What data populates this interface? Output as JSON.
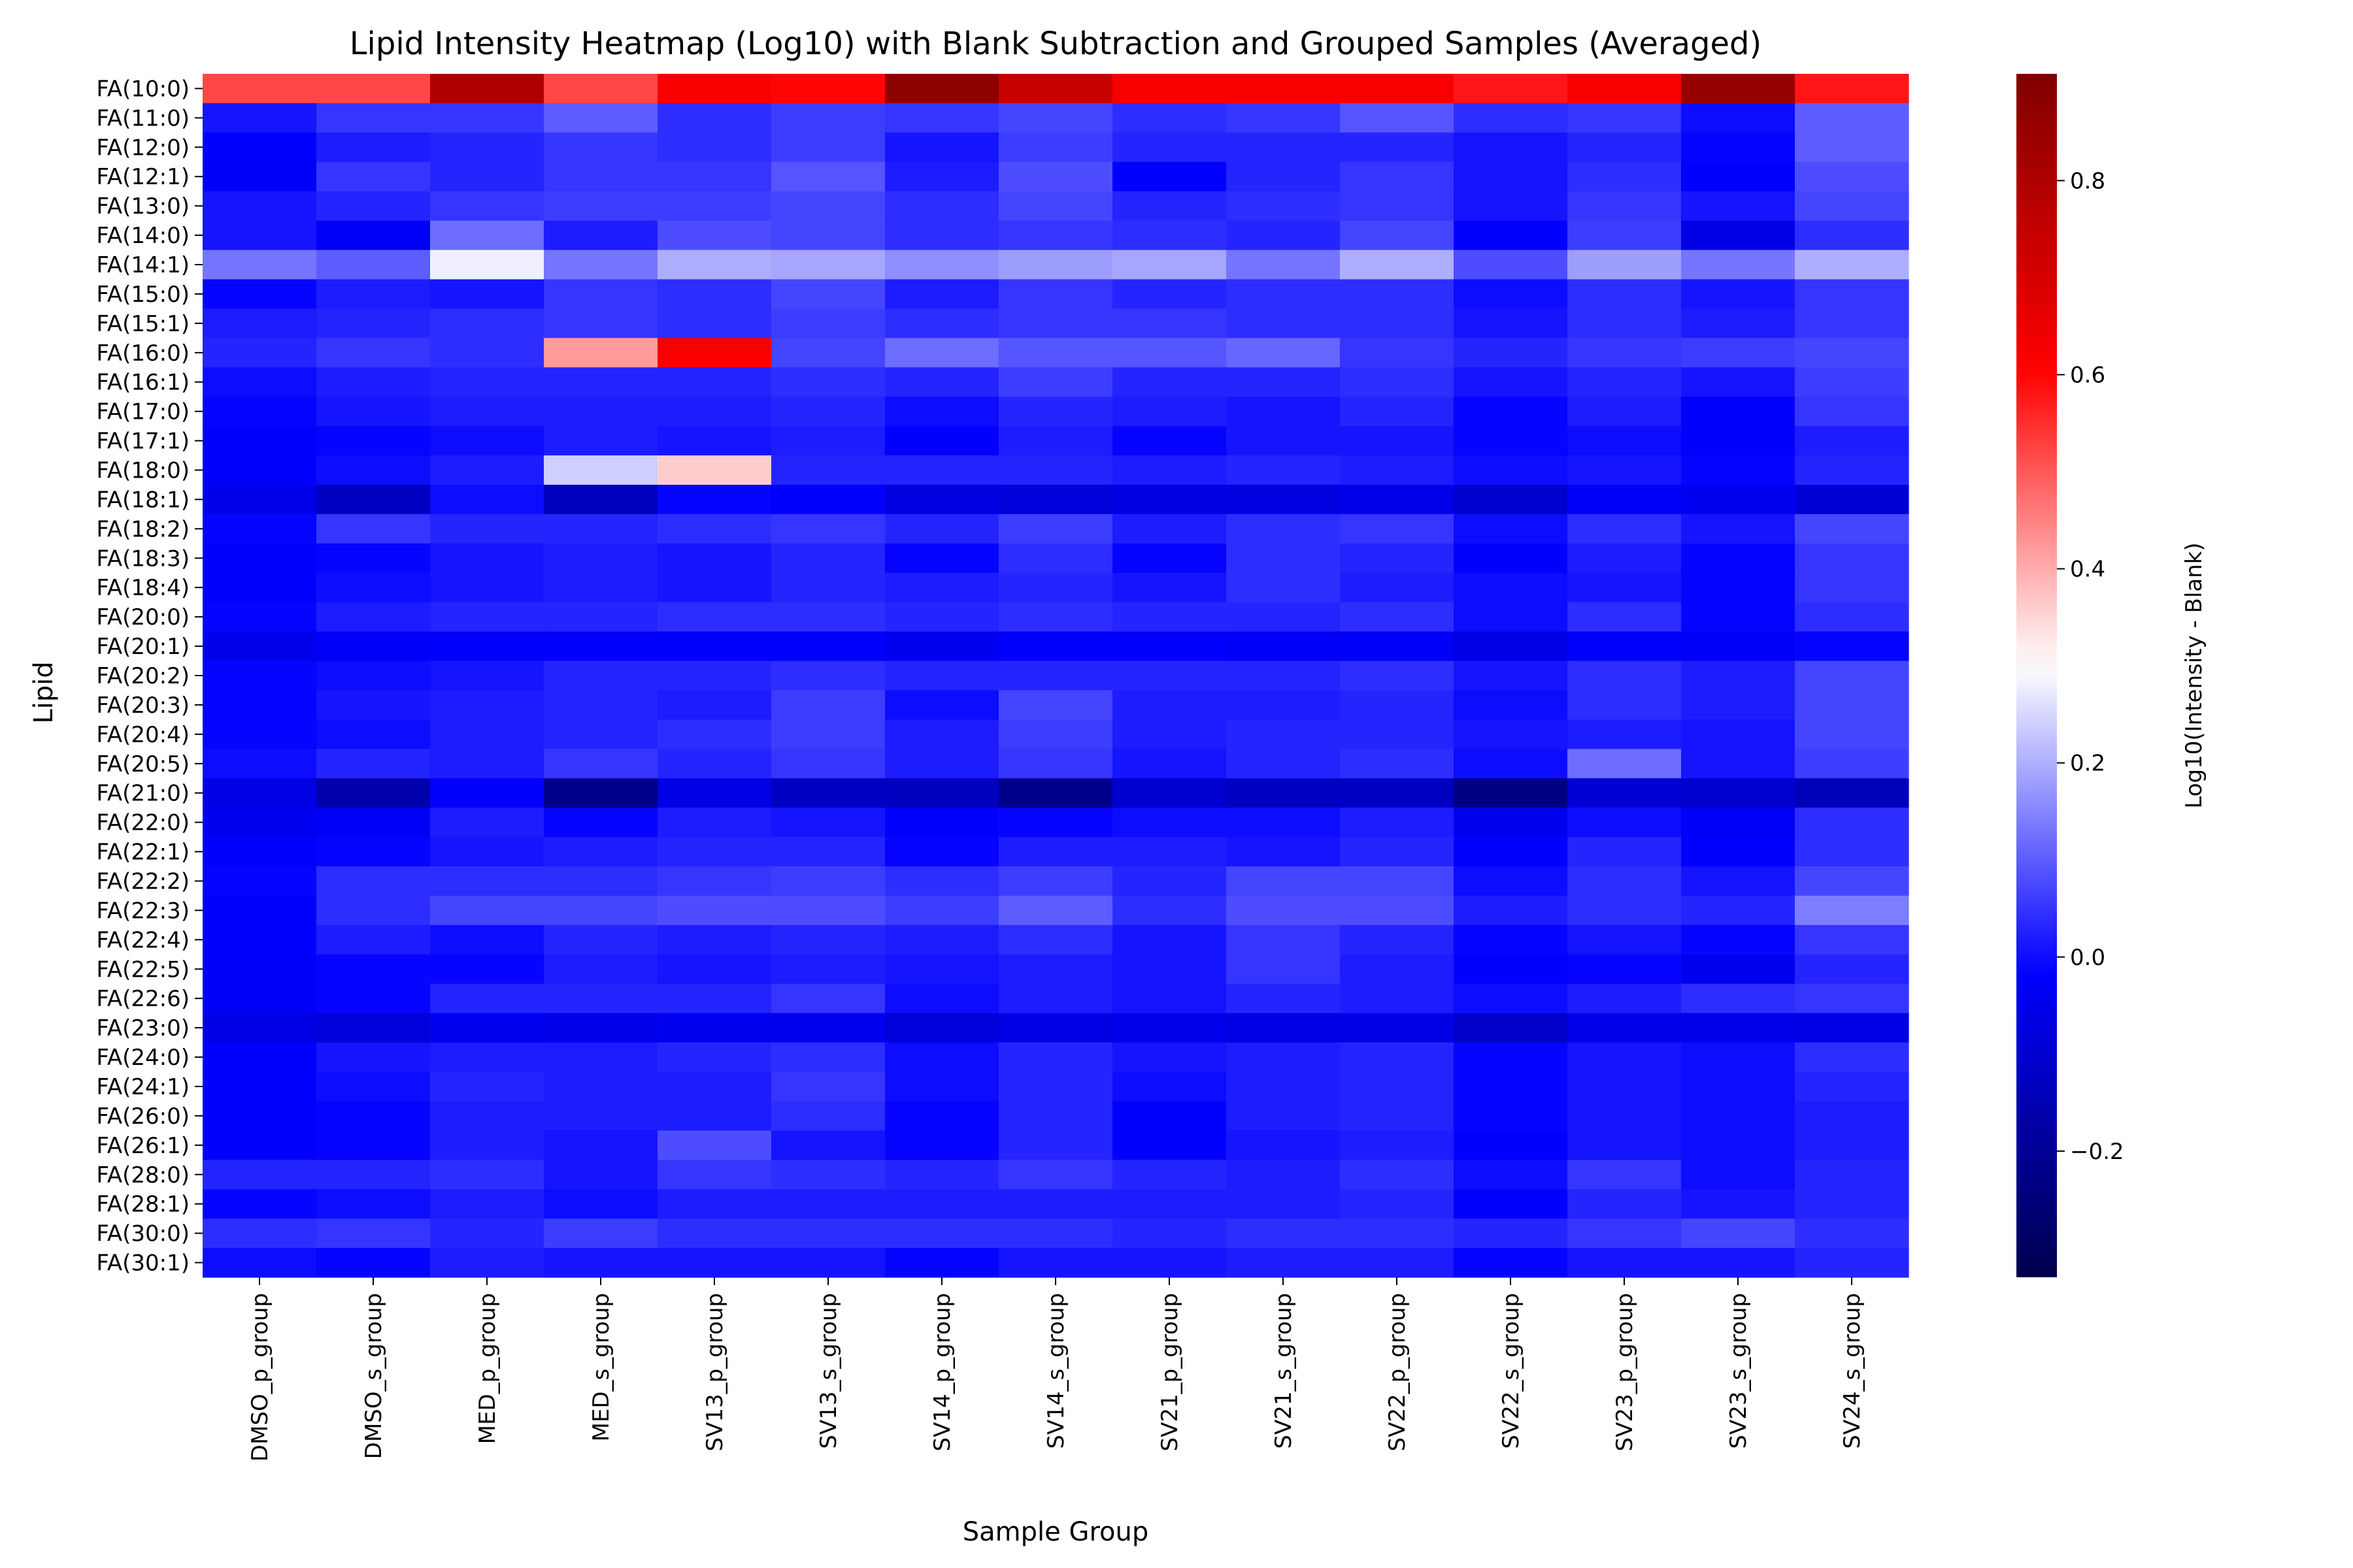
{
  "chart_data": {
    "type": "heatmap",
    "title": "Lipid Intensity Heatmap (Log10) with Blank Subtraction and Grouped Samples (Averaged)",
    "xlabel": "Sample Group",
    "ylabel": "Lipid",
    "colorbar_label": "Log10(Intensity - Blank)",
    "colormap": "seismic",
    "vmin": -0.33,
    "vmax": 0.91,
    "colorbar_ticks": [
      "−0.2",
      "0.0",
      "0.2",
      "0.4",
      "0.6",
      "0.8"
    ],
    "colorbar_tick_values": [
      -0.2,
      0.0,
      0.2,
      0.4,
      0.6,
      0.8
    ],
    "x_categories": [
      "DMSO_p_group",
      "DMSO_s_group",
      "MED_p_group",
      "MED_s_group",
      "SV13_p_group",
      "SV13_s_group",
      "SV14_p_group",
      "SV14_s_group",
      "SV21_p_group",
      "SV21_s_group",
      "SV22_p_group",
      "SV22_s_group",
      "SV23_p_group",
      "SV23_s_group",
      "SV24_s_group"
    ],
    "y_categories": [
      "FA(10:0)",
      "FA(11:0)",
      "FA(12:0)",
      "FA(12:1)",
      "FA(13:0)",
      "FA(14:0)",
      "FA(14:1)",
      "FA(15:0)",
      "FA(15:1)",
      "FA(16:0)",
      "FA(16:1)",
      "FA(17:0)",
      "FA(17:1)",
      "FA(18:0)",
      "FA(18:1)",
      "FA(18:2)",
      "FA(18:3)",
      "FA(18:4)",
      "FA(20:0)",
      "FA(20:1)",
      "FA(20:2)",
      "FA(20:3)",
      "FA(20:4)",
      "FA(20:5)",
      "FA(21:0)",
      "FA(22:0)",
      "FA(22:1)",
      "FA(22:2)",
      "FA(22:3)",
      "FA(22:4)",
      "FA(22:5)",
      "FA(22:6)",
      "FA(23:0)",
      "FA(24:0)",
      "FA(24:1)",
      "FA(26:0)",
      "FA(26:1)",
      "FA(28:0)",
      "FA(28:1)",
      "FA(30:0)",
      "FA(30:1)"
    ],
    "values": [
      [
        0.52,
        0.52,
        0.8,
        0.52,
        0.62,
        0.6,
        0.88,
        0.74,
        0.62,
        0.62,
        0.62,
        0.58,
        0.62,
        0.86,
        0.58
      ],
      [
        0.01,
        0.05,
        0.05,
        0.1,
        0.04,
        0.06,
        0.05,
        0.07,
        0.04,
        0.05,
        0.09,
        0.04,
        0.05,
        0.0,
        0.1
      ],
      [
        -0.02,
        0.02,
        0.03,
        0.05,
        0.04,
        0.06,
        0.01,
        0.06,
        0.03,
        0.03,
        0.03,
        0.01,
        0.03,
        -0.01,
        0.1
      ],
      [
        -0.03,
        0.05,
        0.03,
        0.05,
        0.05,
        0.09,
        0.02,
        0.08,
        -0.02,
        0.03,
        0.05,
        0.01,
        0.04,
        -0.02,
        0.08
      ],
      [
        0.01,
        0.03,
        0.05,
        0.06,
        0.06,
        0.07,
        0.04,
        0.07,
        0.03,
        0.04,
        0.05,
        0.01,
        0.05,
        0.01,
        0.07
      ],
      [
        0.01,
        -0.03,
        0.12,
        0.02,
        0.08,
        0.07,
        0.04,
        0.05,
        0.04,
        0.03,
        0.07,
        -0.02,
        0.06,
        -0.06,
        0.04
      ],
      [
        0.13,
        0.1,
        0.28,
        0.13,
        0.2,
        0.19,
        0.16,
        0.18,
        0.19,
        0.13,
        0.2,
        0.08,
        0.18,
        0.13,
        0.2
      ],
      [
        -0.01,
        0.02,
        0.01,
        0.05,
        0.04,
        0.07,
        0.02,
        0.05,
        0.03,
        0.04,
        0.04,
        0.0,
        0.04,
        0.01,
        0.05
      ],
      [
        0.02,
        0.03,
        0.04,
        0.05,
        0.04,
        0.06,
        0.04,
        0.05,
        0.05,
        0.04,
        0.04,
        0.01,
        0.04,
        0.02,
        0.05
      ],
      [
        0.03,
        0.05,
        0.04,
        0.42,
        0.62,
        0.07,
        0.12,
        0.09,
        0.09,
        0.11,
        0.05,
        0.03,
        0.05,
        0.06,
        0.07
      ],
      [
        0.0,
        0.02,
        0.03,
        0.03,
        0.03,
        0.04,
        0.03,
        0.06,
        0.03,
        0.03,
        0.04,
        0.01,
        0.03,
        0.01,
        0.06
      ],
      [
        -0.01,
        0.01,
        0.02,
        0.02,
        0.02,
        0.03,
        0.0,
        0.03,
        0.02,
        0.01,
        0.03,
        -0.01,
        0.02,
        -0.02,
        0.05
      ],
      [
        -0.02,
        -0.01,
        0.0,
        0.02,
        0.01,
        0.02,
        -0.02,
        0.02,
        -0.01,
        0.01,
        0.01,
        -0.01,
        0.0,
        -0.02,
        0.02
      ],
      [
        -0.02,
        0.0,
        0.02,
        0.24,
        0.36,
        0.03,
        0.03,
        0.03,
        0.02,
        0.03,
        0.02,
        0.0,
        0.01,
        -0.01,
        0.03
      ],
      [
        -0.05,
        -0.12,
        0.0,
        -0.13,
        -0.01,
        -0.02,
        -0.07,
        -0.08,
        -0.07,
        -0.07,
        -0.05,
        -0.1,
        -0.03,
        -0.04,
        -0.09
      ],
      [
        -0.01,
        0.05,
        0.03,
        0.03,
        0.04,
        0.05,
        0.03,
        0.06,
        0.02,
        0.04,
        0.05,
        0.0,
        0.04,
        0.01,
        0.07
      ],
      [
        -0.02,
        -0.01,
        0.01,
        0.02,
        0.01,
        0.03,
        -0.01,
        0.04,
        -0.01,
        0.04,
        0.03,
        -0.02,
        0.02,
        -0.01,
        0.05
      ],
      [
        -0.02,
        0.0,
        0.01,
        0.02,
        0.01,
        0.03,
        0.02,
        0.03,
        0.01,
        0.04,
        0.02,
        0.0,
        0.01,
        -0.01,
        0.05
      ],
      [
        -0.01,
        0.02,
        0.03,
        0.03,
        0.04,
        0.04,
        0.03,
        0.04,
        0.03,
        0.03,
        0.04,
        0.0,
        0.04,
        -0.01,
        0.04
      ],
      [
        -0.05,
        -0.03,
        -0.02,
        -0.02,
        -0.02,
        -0.02,
        -0.04,
        -0.02,
        -0.02,
        -0.03,
        -0.03,
        -0.06,
        -0.02,
        -0.03,
        -0.01
      ],
      [
        -0.01,
        0.0,
        0.01,
        0.03,
        0.03,
        0.04,
        0.03,
        0.03,
        0.03,
        0.03,
        0.04,
        0.01,
        0.04,
        0.02,
        0.07
      ],
      [
        -0.01,
        0.01,
        0.02,
        0.03,
        0.02,
        0.06,
        0.0,
        0.07,
        0.02,
        0.02,
        0.03,
        0.0,
        0.04,
        0.02,
        0.07
      ],
      [
        -0.01,
        0.0,
        0.02,
        0.03,
        0.04,
        0.06,
        0.02,
        0.06,
        0.02,
        0.03,
        0.03,
        0.01,
        0.02,
        0.01,
        0.07
      ],
      [
        0.0,
        0.03,
        0.02,
        0.05,
        0.03,
        0.05,
        0.02,
        0.05,
        0.01,
        0.03,
        0.04,
        0.0,
        0.12,
        0.01,
        0.06
      ],
      [
        -0.06,
        -0.16,
        -0.02,
        -0.22,
        -0.06,
        -0.12,
        -0.13,
        -0.22,
        -0.1,
        -0.12,
        -0.12,
        -0.23,
        -0.09,
        -0.1,
        -0.14
      ],
      [
        -0.04,
        -0.03,
        0.02,
        -0.01,
        0.02,
        0.01,
        -0.02,
        -0.01,
        0.0,
        0.0,
        0.02,
        -0.04,
        0.0,
        -0.03,
        0.04
      ],
      [
        -0.02,
        -0.01,
        0.01,
        0.02,
        0.03,
        0.03,
        -0.01,
        0.02,
        0.02,
        0.01,
        0.03,
        -0.02,
        0.03,
        -0.02,
        0.04
      ],
      [
        -0.01,
        0.04,
        0.04,
        0.04,
        0.05,
        0.06,
        0.04,
        0.06,
        0.03,
        0.07,
        0.07,
        0.0,
        0.04,
        0.01,
        0.07
      ],
      [
        -0.02,
        0.04,
        0.07,
        0.07,
        0.08,
        0.08,
        0.06,
        0.1,
        0.04,
        0.08,
        0.08,
        0.02,
        0.04,
        0.03,
        0.14
      ],
      [
        -0.02,
        0.02,
        0.0,
        0.03,
        0.02,
        0.03,
        0.02,
        0.04,
        0.01,
        0.05,
        0.03,
        -0.01,
        0.01,
        -0.01,
        0.05
      ],
      [
        -0.03,
        -0.01,
        -0.01,
        0.02,
        0.01,
        0.02,
        0.01,
        0.02,
        0.01,
        0.05,
        0.02,
        -0.02,
        -0.01,
        -0.04,
        0.03
      ],
      [
        -0.03,
        -0.01,
        0.03,
        0.03,
        0.03,
        0.05,
        0.0,
        0.02,
        0.01,
        0.03,
        0.02,
        0.0,
        0.02,
        0.04,
        0.05
      ],
      [
        -0.06,
        -0.08,
        -0.04,
        -0.05,
        -0.04,
        -0.04,
        -0.08,
        -0.06,
        -0.05,
        -0.06,
        -0.06,
        -0.11,
        -0.05,
        -0.05,
        -0.06
      ],
      [
        -0.02,
        0.01,
        0.02,
        0.02,
        0.03,
        0.04,
        0.0,
        0.03,
        0.01,
        0.02,
        0.03,
        -0.01,
        0.01,
        0.0,
        0.04
      ],
      [
        -0.02,
        0.0,
        0.03,
        0.02,
        0.02,
        0.05,
        0.0,
        0.03,
        0.0,
        0.02,
        0.03,
        -0.01,
        0.01,
        0.0,
        0.03
      ],
      [
        -0.02,
        -0.01,
        0.02,
        0.02,
        0.02,
        0.04,
        -0.01,
        0.03,
        -0.02,
        0.02,
        0.03,
        -0.01,
        0.01,
        0.0,
        0.02
      ],
      [
        -0.02,
        -0.01,
        0.02,
        0.01,
        0.08,
        0.01,
        -0.01,
        0.03,
        -0.02,
        0.01,
        0.02,
        -0.02,
        0.01,
        0.0,
        0.02
      ],
      [
        0.03,
        0.03,
        0.04,
        0.01,
        0.05,
        0.04,
        0.03,
        0.05,
        0.03,
        0.02,
        0.04,
        0.0,
        0.05,
        0.0,
        0.03
      ],
      [
        -0.01,
        0.0,
        0.02,
        0.0,
        0.02,
        0.02,
        0.02,
        0.02,
        0.02,
        0.02,
        0.03,
        -0.02,
        0.03,
        0.01,
        0.03
      ],
      [
        0.04,
        0.05,
        0.03,
        0.06,
        0.04,
        0.04,
        0.04,
        0.04,
        0.03,
        0.04,
        0.04,
        0.03,
        0.05,
        0.07,
        0.04
      ],
      [
        0.0,
        -0.01,
        0.02,
        0.01,
        0.01,
        0.01,
        -0.01,
        0.01,
        0.01,
        0.02,
        0.02,
        -0.01,
        0.01,
        0.01,
        0.03
      ]
    ]
  }
}
